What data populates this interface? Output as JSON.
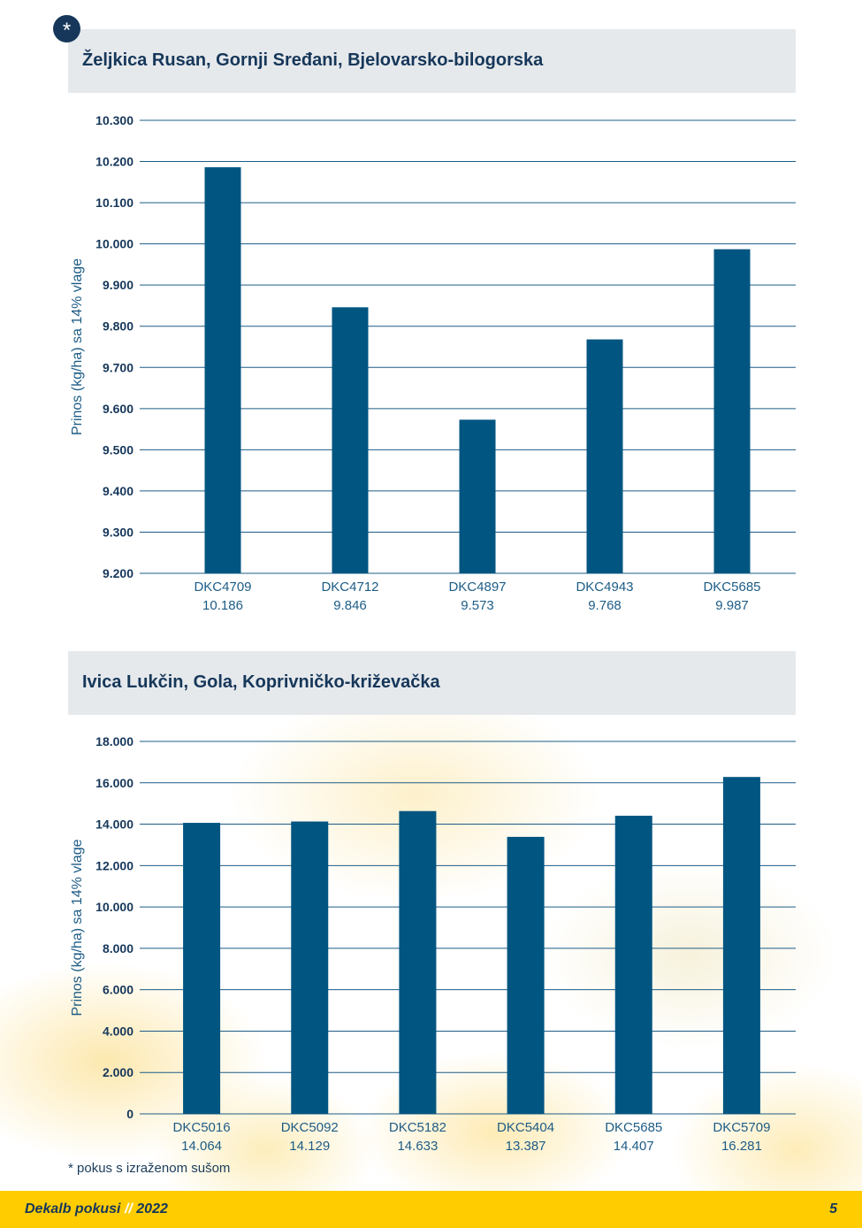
{
  "chart_data": [
    {
      "type": "bar",
      "title": "Željkica Rusan, Gornji Sređani, Bjelovarsko-bilogorska",
      "ylabel": "Prinos (kg/ha) sa 14% vlage",
      "ylim": [
        9200,
        10300
      ],
      "yticks": [
        9200,
        9300,
        9400,
        9500,
        9600,
        9700,
        9800,
        9900,
        10000,
        10100,
        10200,
        10300
      ],
      "ytick_labels": [
        "9.200",
        "9.300",
        "9.400",
        "9.500",
        "9.600",
        "9.700",
        "9.800",
        "9.900",
        "10.000",
        "10.100",
        "10.200",
        "10.300"
      ],
      "categories": [
        "DKC4709",
        "DKC4712",
        "DKC4897",
        "DKC4943",
        "DKC5685"
      ],
      "values": [
        10186,
        9846,
        9573,
        9768,
        9987
      ],
      "value_labels": [
        "10.186",
        "9.846",
        "9.573",
        "9.768",
        "9.987"
      ],
      "grid": true,
      "color": "#005581"
    },
    {
      "type": "bar",
      "title": "Ivica Lukčin, Gola, Koprivničko-križevačka",
      "ylabel": "Prinos (kg/ha) sa 14% vlage",
      "ylim": [
        0,
        18000
      ],
      "yticks": [
        0,
        2000,
        4000,
        6000,
        8000,
        10000,
        12000,
        14000,
        16000,
        18000
      ],
      "ytick_labels": [
        "0",
        "2.000",
        "4.000",
        "6.000",
        "8.000",
        "10.000",
        "12.000",
        "14.000",
        "16.000",
        "18.000"
      ],
      "categories": [
        "DKC5016",
        "DKC5092",
        "DKC5182",
        "DKC5404",
        "DKC5685",
        "DKC5709"
      ],
      "values": [
        14064,
        14129,
        14633,
        13387,
        14407,
        16281
      ],
      "value_labels": [
        "14.064",
        "14.129",
        "14.633",
        "13.387",
        "14.407",
        "16.281"
      ],
      "grid": true,
      "color": "#005581"
    }
  ],
  "badge": "*",
  "footnote": "* pokus s izraženom sušom",
  "footer": {
    "brand": "Dekalb pokusi",
    "separator": "//",
    "year": "2022",
    "page": "5"
  },
  "colors": {
    "bar": "#005581",
    "header_bg": "#e6e9ec",
    "footer_bg": "#ffcc00",
    "text": "#16375a"
  }
}
